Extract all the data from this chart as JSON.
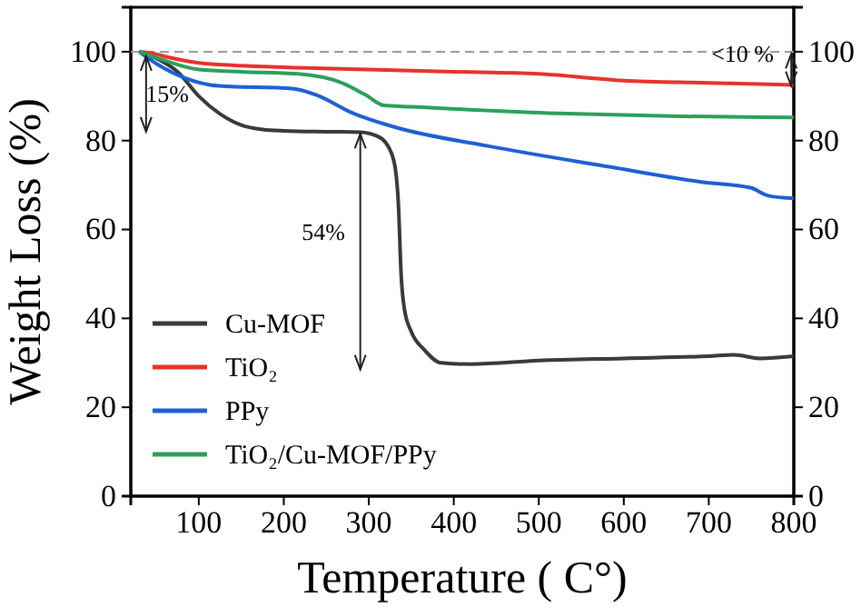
{
  "chart_data": {
    "type": "line",
    "xlabel": "Temperature ( C°)",
    "ylabel": "Weight Loss (%)",
    "xlim": [
      20,
      800
    ],
    "xticks": [
      100,
      200,
      300,
      400,
      500,
      600,
      700,
      800
    ],
    "ylim": [
      0,
      110
    ],
    "yticks": [
      0,
      20,
      40,
      60,
      80,
      100
    ],
    "y2lim": [
      0,
      110
    ],
    "y2ticks": [
      0,
      20,
      40,
      60,
      80,
      100
    ],
    "series": [
      {
        "name": "Cu-MOF",
        "color": "#3a3a3a",
        "x": [
          30,
          50,
          75,
          100,
          125,
          150,
          175,
          200,
          250,
          290,
          310,
          320,
          330,
          335,
          338,
          342,
          350,
          365,
          385,
          420,
          500,
          600,
          700,
          730,
          760,
          800
        ],
        "values": [
          100,
          98.5,
          95.5,
          90,
          86,
          83.5,
          82.5,
          82.2,
          82,
          81.9,
          81,
          79.5,
          75,
          65,
          50,
          42,
          37,
          33,
          30,
          29.7,
          30.5,
          31,
          31.5,
          31.8,
          31,
          31.5
        ]
      },
      {
        "name": "TiO₂",
        "color": "#e8322c",
        "x": [
          30,
          40,
          70,
          100,
          200,
          300,
          400,
          500,
          600,
          700,
          800
        ],
        "values": [
          100,
          99.8,
          98.5,
          97.5,
          96.5,
          96,
          95.5,
          95,
          93.5,
          93,
          92.5
        ]
      },
      {
        "name": "PPy",
        "color": "#1f5fd6",
        "x": [
          30,
          37,
          81,
          124,
          210,
          238,
          281,
          333,
          440,
          583,
          691,
          749,
          770,
          800
        ],
        "values": [
          100,
          99,
          94.3,
          92.3,
          91.7,
          90.3,
          86.2,
          82.9,
          78.8,
          74.1,
          70.7,
          69.4,
          67.6,
          67
        ]
      },
      {
        "name": "TiO₂/Cu-MOF/PPy",
        "color": "#2ca05a",
        "x": [
          30,
          60,
          100,
          150,
          217,
          268,
          296,
          318,
          350,
          511,
          655,
          800
        ],
        "values": [
          100,
          98,
          96,
          95.5,
          95,
          93,
          90.3,
          87.9,
          87.6,
          86.2,
          85.5,
          85.2
        ]
      }
    ],
    "ref_lines": [
      {
        "axis": "y",
        "value": 100,
        "color": "#999999",
        "line_style": "dashed"
      }
    ],
    "annotations": [
      "15%",
      "54%",
      "<10 %"
    ],
    "legend": "bottom left",
    "grid": false,
    "marker": "none",
    "line_style": "solid"
  }
}
